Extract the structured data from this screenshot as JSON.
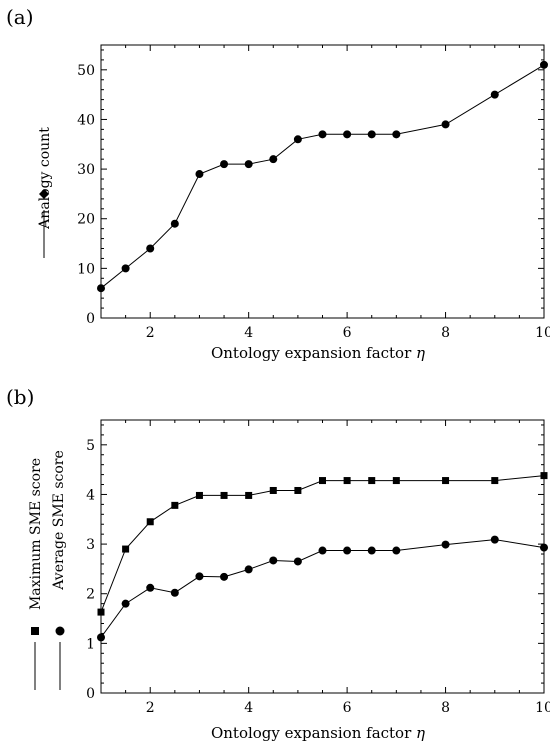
{
  "panels": [
    {
      "label": "(a)",
      "xlabel": "Ontology expansion factor",
      "xlabel_symbol": "η",
      "legend_label": "Analogy count"
    },
    {
      "label": "(b)",
      "xlabel": "Ontology expansion factor",
      "xlabel_symbol": "η",
      "legend_labels": [
        "Maximum SME score",
        "Average SME score"
      ]
    }
  ],
  "chart_data": [
    {
      "type": "line",
      "xlim": [
        1,
        10
      ],
      "ylim": [
        0,
        55
      ],
      "xticks": [
        2,
        4,
        6,
        8,
        10
      ],
      "yticks": [
        0,
        10,
        20,
        30,
        40,
        50
      ],
      "xlabel": "Ontology expansion factor η",
      "ylabel": "Analogy count",
      "legend": "left",
      "x": [
        1,
        1.5,
        2,
        2.5,
        3,
        3.5,
        4,
        4.5,
        5,
        5.5,
        6,
        6.5,
        7,
        8,
        9,
        10
      ],
      "series": [
        {
          "name": "Analogy count",
          "marker": "circle",
          "values": [
            6,
            10,
            14,
            19,
            29,
            31,
            31,
            32,
            36,
            37,
            37,
            37,
            37,
            39,
            45,
            51
          ]
        }
      ]
    },
    {
      "type": "line",
      "xlim": [
        1,
        10
      ],
      "ylim": [
        0,
        5.5
      ],
      "xticks": [
        2,
        4,
        6,
        8,
        10
      ],
      "yticks": [
        0,
        1,
        2,
        3,
        4,
        5
      ],
      "xlabel": "Ontology expansion factor η",
      "legend": "left",
      "x": [
        1,
        1.5,
        2,
        2.5,
        3,
        3.5,
        4,
        4.5,
        5,
        5.5,
        6,
        6.5,
        7,
        8,
        9,
        10
      ],
      "series": [
        {
          "name": "Maximum SME score",
          "marker": "square",
          "values": [
            1.63,
            2.9,
            3.45,
            3.78,
            3.98,
            3.98,
            3.98,
            4.08,
            4.08,
            4.28,
            4.28,
            4.28,
            4.28,
            4.28,
            4.28,
            4.38
          ]
        },
        {
          "name": "Average SME score",
          "marker": "circle",
          "values": [
            1.12,
            1.8,
            2.12,
            2.02,
            2.35,
            2.34,
            2.49,
            2.67,
            2.65,
            2.87,
            2.87,
            2.87,
            2.87,
            2.99,
            3.09,
            2.93
          ]
        }
      ]
    }
  ]
}
